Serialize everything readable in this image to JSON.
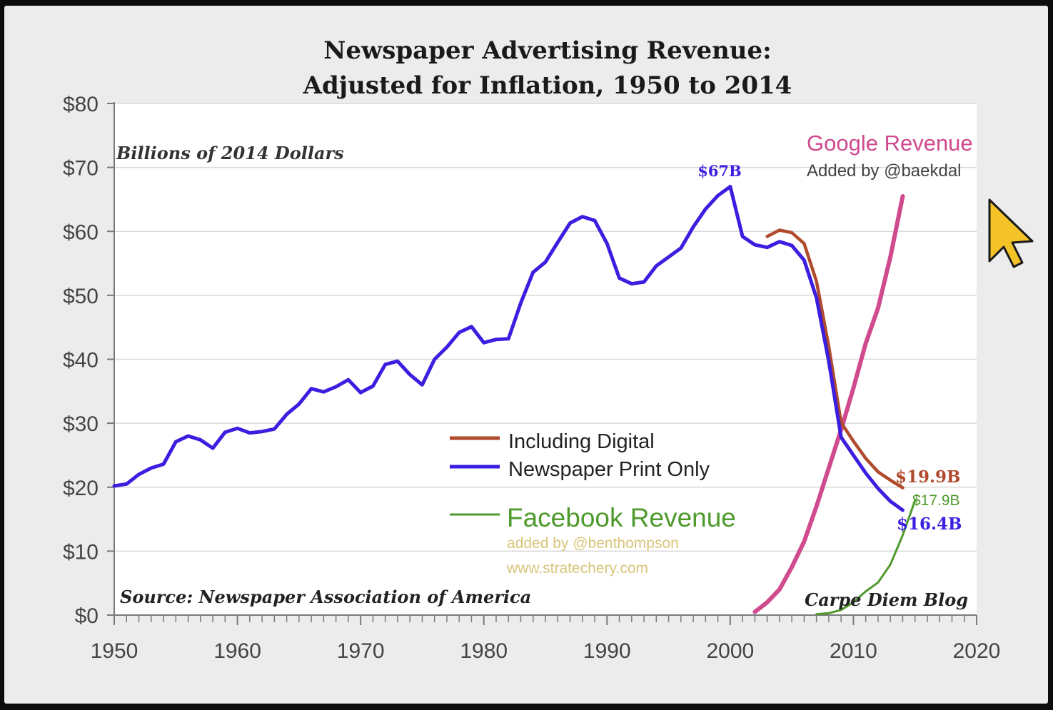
{
  "chart_data": {
    "type": "line",
    "title": "Newspaper Advertising Revenue:",
    "subtitle": "Adjusted for Inflation, 1950 to 2014",
    "ylabel_note": "Billions of 2014 Dollars",
    "source": "Source: Newspaper Association of America",
    "credit": "Carpe Diem Blog",
    "xlim": [
      1950,
      2020
    ],
    "ylim": [
      0,
      80
    ],
    "x_ticks": [
      1950,
      1960,
      1970,
      1980,
      1990,
      2000,
      2010,
      2020
    ],
    "y_ticks": [
      {
        "value": 0,
        "label": "$0"
      },
      {
        "value": 10,
        "label": "$10"
      },
      {
        "value": 20,
        "label": "$20"
      },
      {
        "value": 30,
        "label": "$30"
      },
      {
        "value": 40,
        "label": "$40"
      },
      {
        "value": 50,
        "label": "$50"
      },
      {
        "value": 60,
        "label": "$60"
      },
      {
        "value": 70,
        "label": "$70"
      },
      {
        "value": 80,
        "label": "$80"
      }
    ],
    "grid": true,
    "legend_placement": "center-bottom",
    "series": [
      {
        "name": "Newspaper Print Only",
        "color": "#3b1fe0",
        "x": [
          1950,
          1951,
          1952,
          1953,
          1954,
          1955,
          1956,
          1957,
          1958,
          1959,
          1960,
          1961,
          1962,
          1963,
          1964,
          1965,
          1966,
          1967,
          1968,
          1969,
          1970,
          1971,
          1972,
          1973,
          1974,
          1975,
          1976,
          1977,
          1978,
          1979,
          1980,
          1981,
          1982,
          1983,
          1984,
          1985,
          1986,
          1987,
          1988,
          1989,
          1990,
          1991,
          1992,
          1993,
          1994,
          1995,
          1996,
          1997,
          1998,
          1999,
          2000,
          2001,
          2002,
          2003,
          2004,
          2005,
          2006,
          2007,
          2008,
          2009,
          2010,
          2011,
          2012,
          2013,
          2014
        ],
        "y": [
          20.2,
          20.5,
          22.0,
          23.0,
          23.6,
          27.1,
          28.0,
          27.4,
          26.1,
          28.6,
          29.2,
          28.5,
          28.7,
          29.1,
          31.4,
          33.0,
          35.4,
          34.9,
          35.7,
          36.8,
          34.8,
          35.8,
          39.2,
          39.7,
          37.6,
          36.0,
          40.0,
          41.9,
          44.2,
          45.1,
          42.6,
          43.1,
          43.2,
          48.8,
          53.6,
          55.2,
          58.3,
          61.3,
          62.3,
          61.7,
          58.1,
          52.7,
          51.8,
          52.1,
          54.6,
          56.0,
          57.4,
          60.7,
          63.5,
          65.6,
          67.0,
          59.2,
          57.9,
          57.5,
          58.4,
          57.8,
          55.5,
          49.6,
          39.7,
          27.8,
          25.0,
          22.2,
          19.8,
          17.8,
          16.4
        ]
      },
      {
        "name": "Including Digital",
        "color": "#b04a2c",
        "x": [
          2003,
          2004,
          2005,
          2006,
          2007,
          2008,
          2009,
          2010,
          2011,
          2012,
          2013,
          2014
        ],
        "y": [
          59.2,
          60.2,
          59.8,
          58.1,
          52.2,
          42.0,
          30.1,
          27.2,
          24.5,
          22.4,
          21.1,
          19.9
        ]
      },
      {
        "name": "Google Revenue",
        "color": "#d04a8e",
        "x": [
          2002,
          2003,
          2004,
          2005,
          2006,
          2007,
          2008,
          2009,
          2010,
          2011,
          2012,
          2013,
          2014
        ],
        "y": [
          0.5,
          2.0,
          4.0,
          7.5,
          11.5,
          17.0,
          23.0,
          29.0,
          35.5,
          42.5,
          48.0,
          56.0,
          65.5
        ]
      },
      {
        "name": "Facebook Revenue",
        "color": "#4e9a2c",
        "x": [
          2007,
          2008,
          2009,
          2010,
          2011,
          2012,
          2013,
          2014,
          2015
        ],
        "y": [
          0.15,
          0.3,
          0.8,
          2.0,
          3.7,
          5.1,
          7.9,
          12.5,
          17.9
        ]
      }
    ],
    "annotations": {
      "peak": "$67B",
      "google_title": "Google Revenue",
      "google_credit": "Added by @baekdal",
      "digital_end": "$19.9B",
      "facebook_end": "$17.9B",
      "print_end": "$16.4B",
      "legend_digital": "Including Digital",
      "legend_print": "Newspaper Print Only",
      "legend_facebook": "Facebook Revenue",
      "facebook_credit": "added by @benthompson",
      "facebook_site": "www.stratechery.com"
    }
  }
}
